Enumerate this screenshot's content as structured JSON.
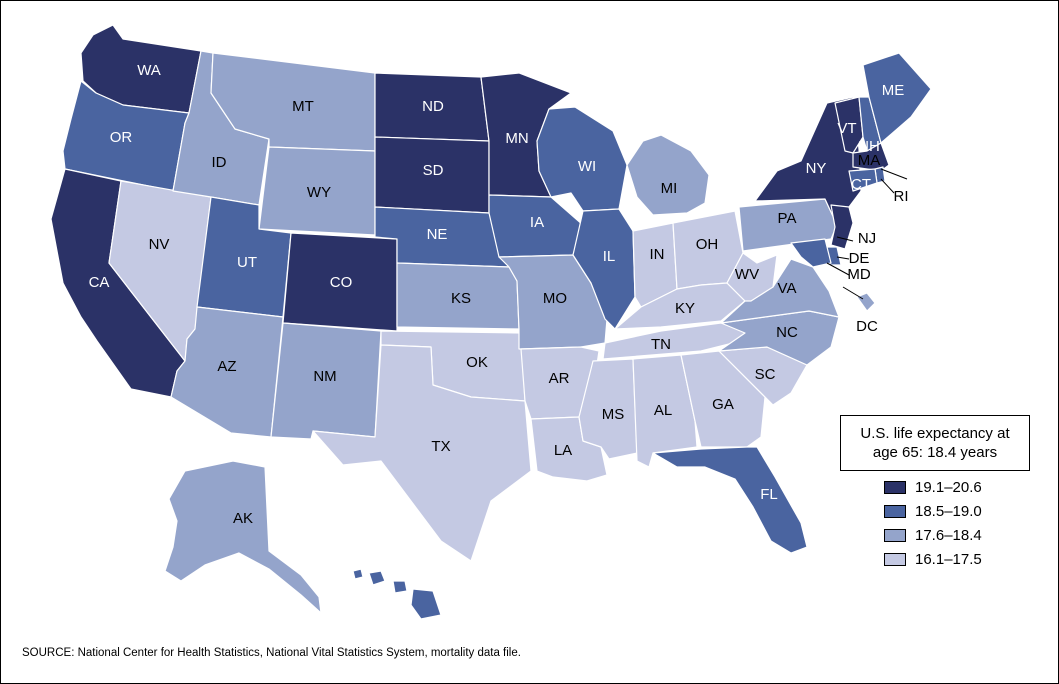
{
  "legend": {
    "title": "U.S. life expectancy at age 65: 18.4 years",
    "items": [
      {
        "label": "19.1–20.6",
        "color": "#2b3267"
      },
      {
        "label": "18.5–19.0",
        "color": "#4a64a0"
      },
      {
        "label": "17.6–18.4",
        "color": "#94a4cb"
      },
      {
        "label": "16.1–17.5",
        "color": "#c4c9e3"
      }
    ]
  },
  "source": "SOURCE: National Center for Health Statistics, National Vital Statistics System, mortality data file.",
  "states": [
    {
      "abbr": "WA",
      "class": 0
    },
    {
      "abbr": "OR",
      "class": 1
    },
    {
      "abbr": "CA",
      "class": 0
    },
    {
      "abbr": "NV",
      "class": 3
    },
    {
      "abbr": "ID",
      "class": 2
    },
    {
      "abbr": "MT",
      "class": 2
    },
    {
      "abbr": "WY",
      "class": 2
    },
    {
      "abbr": "UT",
      "class": 1
    },
    {
      "abbr": "AZ",
      "class": 2
    },
    {
      "abbr": "CO",
      "class": 0
    },
    {
      "abbr": "NM",
      "class": 2
    },
    {
      "abbr": "ND",
      "class": 0
    },
    {
      "abbr": "SD",
      "class": 0
    },
    {
      "abbr": "NE",
      "class": 1
    },
    {
      "abbr": "KS",
      "class": 2
    },
    {
      "abbr": "OK",
      "class": 3
    },
    {
      "abbr": "TX",
      "class": 3
    },
    {
      "abbr": "MN",
      "class": 0
    },
    {
      "abbr": "IA",
      "class": 1
    },
    {
      "abbr": "MO",
      "class": 2
    },
    {
      "abbr": "AR",
      "class": 3
    },
    {
      "abbr": "LA",
      "class": 3
    },
    {
      "abbr": "WI",
      "class": 1
    },
    {
      "abbr": "IL",
      "class": 1
    },
    {
      "abbr": "MI",
      "class": 2
    },
    {
      "abbr": "IN",
      "class": 3
    },
    {
      "abbr": "OH",
      "class": 3
    },
    {
      "abbr": "KY",
      "class": 3
    },
    {
      "abbr": "TN",
      "class": 3
    },
    {
      "abbr": "MS",
      "class": 3
    },
    {
      "abbr": "AL",
      "class": 3
    },
    {
      "abbr": "GA",
      "class": 3
    },
    {
      "abbr": "FL",
      "class": 1
    },
    {
      "abbr": "SC",
      "class": 3
    },
    {
      "abbr": "NC",
      "class": 2
    },
    {
      "abbr": "VA",
      "class": 2
    },
    {
      "abbr": "WV",
      "class": 3
    },
    {
      "abbr": "PA",
      "class": 2
    },
    {
      "abbr": "NY",
      "class": 0
    },
    {
      "abbr": "VT",
      "class": 0
    },
    {
      "abbr": "NH",
      "class": 1
    },
    {
      "abbr": "ME",
      "class": 1
    },
    {
      "abbr": "MA",
      "class": 0
    },
    {
      "abbr": "RI",
      "class": 1
    },
    {
      "abbr": "CT",
      "class": 1
    },
    {
      "abbr": "NJ",
      "class": 0
    },
    {
      "abbr": "DE",
      "class": 1
    },
    {
      "abbr": "MD",
      "class": 1
    },
    {
      "abbr": "DC",
      "class": 2
    },
    {
      "abbr": "AK",
      "class": 2
    },
    {
      "abbr": "HI",
      "class": 1
    }
  ]
}
